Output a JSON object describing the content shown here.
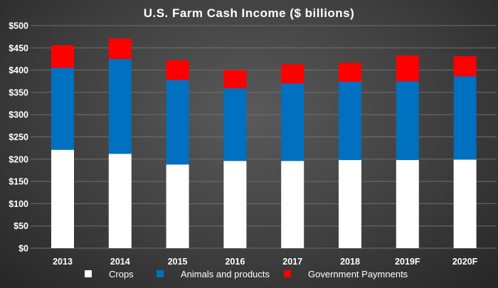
{
  "chart_data": {
    "type": "bar",
    "stacked": true,
    "title": "U.S. Farm Cash Income ($ billions)",
    "xlabel": "",
    "ylabel": "",
    "ylim": [
      0,
      500
    ],
    "y_ticks": [
      "$0",
      "$50",
      "$100",
      "$150",
      "$200",
      "$250",
      "$300",
      "$350",
      "$400",
      "$450",
      "$500"
    ],
    "y_tick_values": [
      0,
      50,
      100,
      150,
      200,
      250,
      300,
      350,
      400,
      450,
      500
    ],
    "grid": true,
    "legend_position": "bottom",
    "categories": [
      "2013",
      "2014",
      "2015",
      "2016",
      "2017",
      "2018",
      "2019F",
      "2020F"
    ],
    "series": [
      {
        "name": "Crops",
        "color": "#ffffff",
        "values": [
          221,
          212,
          188,
          196,
          196,
          198,
          198,
          199
        ]
      },
      {
        "name": "Animals and products",
        "color": "#0070c0",
        "values": [
          184,
          213,
          190,
          163,
          174,
          176,
          177,
          187
        ]
      },
      {
        "name": "Government Paymnents",
        "color": "#ff0000",
        "values": [
          51,
          46,
          44,
          41,
          43,
          42,
          58,
          45
        ]
      }
    ]
  }
}
